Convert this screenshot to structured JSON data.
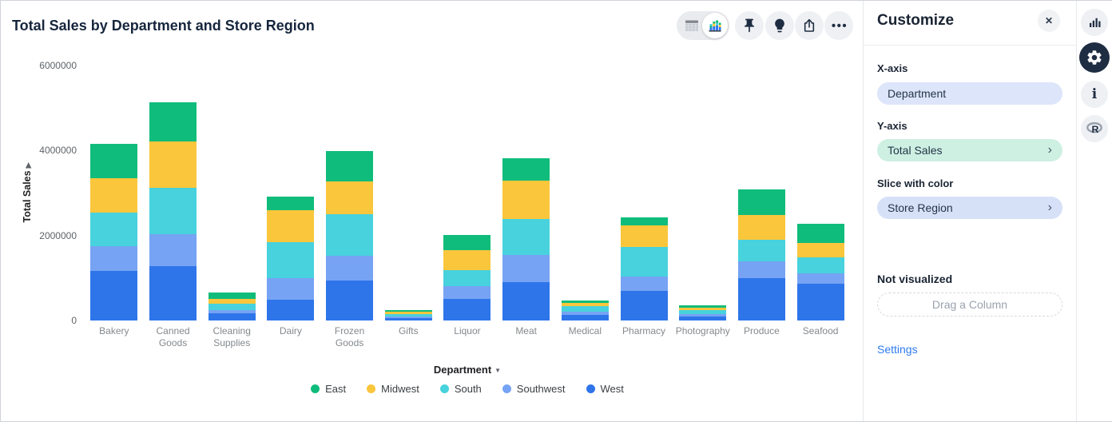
{
  "title": "Total Sales by Department and Store Region",
  "icons": {
    "close": "✕",
    "ellipsis": "•••",
    "chevron_right": "›",
    "dropdown_arrow": "▼",
    "ylabel_arrow": "▶",
    "toolbar": [
      "table-view-icon",
      "chart-view-icon",
      "pin-icon",
      "lightbulb-icon",
      "share-icon",
      "more-icon"
    ],
    "rail": [
      "bar-chart-icon",
      "gear-icon",
      "info-icon",
      "r-logo-icon"
    ]
  },
  "panel": {
    "title": "Customize",
    "x_axis": {
      "label": "X-axis",
      "value": "Department"
    },
    "y_axis": {
      "label": "Y-axis",
      "value": "Total Sales"
    },
    "slice": {
      "label": "Slice with color",
      "value": "Store Region"
    },
    "not_visualized": "Not visualized",
    "drag_placeholder": "Drag a Column",
    "settings": "Settings"
  },
  "colors": {
    "east": "#10bc7b",
    "midwest": "#fac63c",
    "south": "#47d2dd",
    "southwest": "#76a3f3",
    "west": "#2e75ea",
    "pill_x_bg": "#dce5fa",
    "pill_y_bg": "#cdf0e2",
    "pill_slice_bg": "#d6e1f8",
    "link": "#2e7cf0"
  },
  "chart_data": {
    "type": "bar",
    "stacked": true,
    "title": "Total Sales by Department and Store Region",
    "xlabel": "Department",
    "ylabel": "Total Sales",
    "ylim": [
      0,
      6000000
    ],
    "yticks": [
      0,
      2000000,
      4000000,
      6000000
    ],
    "ytick_labels": [
      "0",
      "2000000",
      "4000000",
      "6000000"
    ],
    "grid": false,
    "legend_position": "bottom",
    "categories": [
      "Bakery",
      "Canned Goods",
      "Cleaning Supplies",
      "Dairy",
      "Frozen Goods",
      "Gifts",
      "Liquor",
      "Meat",
      "Medical",
      "Pharmacy",
      "Photography",
      "Produce",
      "Seafood"
    ],
    "series": [
      {
        "name": "West",
        "color": "#2e75ea",
        "values": [
          1170000,
          1280000,
          170000,
          490000,
          950000,
          60000,
          510000,
          910000,
          130000,
          690000,
          100000,
          1000000,
          860000
        ]
      },
      {
        "name": "Southwest",
        "color": "#76a3f3",
        "values": [
          580000,
          760000,
          80000,
          510000,
          570000,
          40000,
          300000,
          630000,
          70000,
          340000,
          60000,
          390000,
          250000
        ]
      },
      {
        "name": "South",
        "color": "#47d2dd",
        "values": [
          790000,
          1080000,
          140000,
          850000,
          990000,
          50000,
          380000,
          850000,
          130000,
          710000,
          80000,
          510000,
          380000
        ]
      },
      {
        "name": "Midwest",
        "color": "#fac63c",
        "values": [
          810000,
          1090000,
          120000,
          740000,
          760000,
          50000,
          470000,
          900000,
          80000,
          500000,
          70000,
          590000,
          330000
        ]
      },
      {
        "name": "East",
        "color": "#10bc7b",
        "values": [
          800000,
          930000,
          150000,
          330000,
          720000,
          40000,
          350000,
          530000,
          70000,
          190000,
          50000,
          590000,
          460000
        ]
      }
    ],
    "legend": [
      {
        "label": "East",
        "color": "#10bc7b"
      },
      {
        "label": "Midwest",
        "color": "#fac63c"
      },
      {
        "label": "South",
        "color": "#47d2dd"
      },
      {
        "label": "Southwest",
        "color": "#76a3f3"
      },
      {
        "label": "West",
        "color": "#2e75ea"
      }
    ]
  }
}
